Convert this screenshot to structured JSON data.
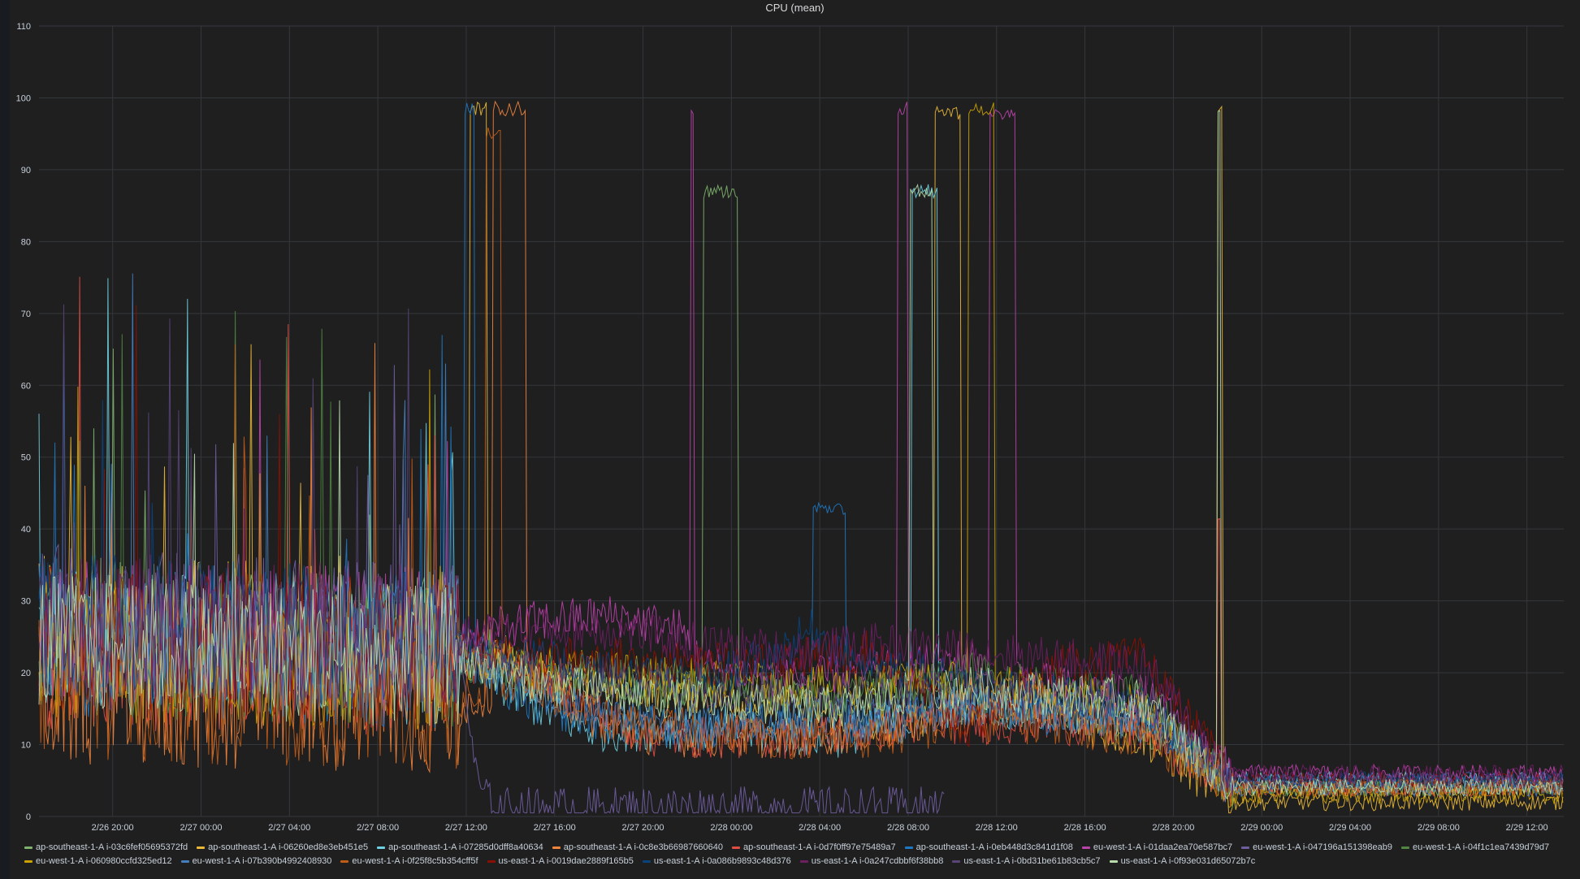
{
  "panel": {
    "title": "CPU (mean)"
  },
  "chart_data": {
    "type": "line",
    "title": "CPU (mean)",
    "xlabel": "",
    "ylabel": "",
    "ylim": [
      0,
      110
    ],
    "yticks": [
      0,
      10,
      20,
      30,
      40,
      50,
      60,
      70,
      80,
      90,
      100,
      110
    ],
    "x_range": [
      "2/26 16:40",
      "2/29 13:40"
    ],
    "xticks": [
      "2/26 20:00",
      "2/27 00:00",
      "2/27 04:00",
      "2/27 08:00",
      "2/27 12:00",
      "2/27 16:00",
      "2/27 20:00",
      "2/28 00:00",
      "2/28 04:00",
      "2/28 08:00",
      "2/28 12:00",
      "2/28 16:00",
      "2/28 20:00",
      "2/29 00:00",
      "2/29 04:00",
      "2/29 08:00",
      "2/29 12:00"
    ],
    "grid": true,
    "legend_position": "bottom",
    "series": [
      {
        "name": "ap-southeast-1-A i-03c6fef05695372fd",
        "color": "#7eb26d",
        "base": [
          [
            0,
            26
          ],
          [
            14,
            24
          ],
          [
            20.5,
            24
          ],
          [
            22,
            20
          ],
          [
            26,
            18
          ],
          [
            30,
            17
          ],
          [
            36,
            16
          ],
          [
            39,
            17
          ],
          [
            42,
            16
          ],
          [
            45,
            15
          ],
          [
            48,
            14
          ],
          [
            50,
            13
          ],
          [
            54,
            4
          ],
          [
            66,
            4
          ],
          [
            69,
            4
          ]
        ],
        "spikes": [
          [
            30,
            88,
            1.6
          ]
        ]
      },
      {
        "name": "ap-southeast-1-A i-06260ed8e3eb451e5",
        "color": "#eab839",
        "base": [
          [
            0,
            27
          ],
          [
            20,
            24
          ],
          [
            22,
            20
          ],
          [
            24,
            18
          ],
          [
            28,
            18
          ],
          [
            30,
            17
          ],
          [
            34,
            15
          ],
          [
            38,
            13
          ],
          [
            40,
            14
          ],
          [
            42,
            16
          ],
          [
            45,
            16
          ],
          [
            48,
            12
          ],
          [
            50,
            11
          ],
          [
            54,
            2
          ],
          [
            66,
            2
          ],
          [
            69,
            2
          ]
        ],
        "spikes": [
          [
            19.5,
            99.5,
            0.8
          ],
          [
            40.5,
            99,
            1.2
          ],
          [
            53.3,
            99,
            0.25
          ]
        ]
      },
      {
        "name": "ap-southeast-1-A i-07285d0dff8a40634",
        "color": "#6ed0e0",
        "base": [
          [
            0,
            25
          ],
          [
            19,
            22
          ],
          [
            22,
            16
          ],
          [
            25,
            12
          ],
          [
            30,
            12
          ],
          [
            36,
            11
          ],
          [
            39,
            13
          ],
          [
            42,
            16
          ],
          [
            46,
            14
          ],
          [
            50,
            14
          ],
          [
            54,
            5
          ],
          [
            66,
            5
          ],
          [
            69,
            5
          ]
        ],
        "spikes": [
          [
            39.5,
            88,
            1.2
          ]
        ]
      },
      {
        "name": "ap-southeast-1-A i-0c8e3b66987660640",
        "color": "#ef843c",
        "base": [
          [
            0,
            17
          ],
          [
            19,
            15
          ],
          [
            22,
            20
          ],
          [
            24,
            16
          ],
          [
            26,
            12
          ],
          [
            30,
            11
          ],
          [
            34,
            11
          ],
          [
            38,
            12
          ],
          [
            40,
            13
          ],
          [
            42,
            17
          ],
          [
            45,
            17
          ],
          [
            48,
            15
          ],
          [
            50,
            14
          ],
          [
            54,
            4
          ],
          [
            66,
            4
          ],
          [
            69,
            4
          ]
        ],
        "spikes": [
          [
            20.5,
            99.5,
            1.5
          ]
        ]
      },
      {
        "name": "ap-southeast-1-A i-0d7f0ff97e75489a7",
        "color": "#e24d42",
        "base": [
          [
            0,
            22
          ],
          [
            19,
            21
          ],
          [
            22,
            22
          ],
          [
            24,
            17
          ],
          [
            26,
            13
          ],
          [
            28,
            11
          ],
          [
            34,
            11
          ],
          [
            38,
            12
          ],
          [
            40,
            13
          ],
          [
            42,
            13
          ],
          [
            46,
            13
          ],
          [
            50,
            12
          ],
          [
            54,
            4
          ],
          [
            66,
            4
          ],
          [
            69,
            4
          ]
        ],
        "spikes": [
          [
            53.3,
            43,
            0.2
          ]
        ]
      },
      {
        "name": "ap-southeast-1-A i-0eb448d3c841d1f08",
        "color": "#1f78c1",
        "base": [
          [
            0,
            24
          ],
          [
            19,
            22
          ],
          [
            22,
            16
          ],
          [
            26,
            13
          ],
          [
            30,
            12
          ],
          [
            34,
            14
          ],
          [
            36,
            13
          ],
          [
            39,
            13
          ],
          [
            42,
            16
          ],
          [
            46,
            14
          ],
          [
            50,
            14
          ],
          [
            54,
            5
          ],
          [
            66,
            5
          ],
          [
            69,
            5
          ]
        ],
        "spikes": [
          [
            19.2,
            99.5,
            0.5
          ],
          [
            35,
            44,
            1.5
          ]
        ]
      },
      {
        "name": "eu-west-1-A i-01daa2ea70e587bc7",
        "color": "#ba43a9",
        "base": [
          [
            0,
            26
          ],
          [
            19,
            25
          ],
          [
            22,
            27
          ],
          [
            26,
            28
          ],
          [
            29,
            26
          ],
          [
            30,
            21
          ],
          [
            34,
            19
          ],
          [
            38,
            20
          ],
          [
            42,
            22
          ],
          [
            46,
            18
          ],
          [
            50,
            17
          ],
          [
            54,
            6
          ],
          [
            66,
            6
          ],
          [
            69,
            6
          ]
        ],
        "spikes": [
          [
            38.8,
            99.5,
            0.5
          ],
          [
            43,
            99,
            1.2
          ],
          [
            29.5,
            99,
            0.15
          ]
        ]
      },
      {
        "name": "eu-west-1-A i-047196a151398eab9",
        "color": "#705da0",
        "base": [
          [
            0,
            28
          ],
          [
            19,
            25
          ],
          [
            19.8,
            5
          ],
          [
            20.5,
            1.2
          ],
          [
            40.5,
            1.2
          ],
          [
            41,
            1.0
          ],
          [
            41.1,
            null
          ],
          [
            66,
            null
          ],
          [
            69,
            null
          ]
        ],
        "spikes": []
      },
      {
        "name": "eu-west-1-A i-04f1c1ea7439d79d7",
        "color": "#508642",
        "base": [
          [
            0,
            24
          ],
          [
            19,
            22
          ],
          [
            22,
            20
          ],
          [
            26,
            19
          ],
          [
            30,
            18
          ],
          [
            36,
            17
          ],
          [
            39,
            18
          ],
          [
            42,
            20
          ],
          [
            46,
            18
          ],
          [
            50,
            17
          ],
          [
            54,
            4
          ],
          [
            66,
            4
          ],
          [
            69,
            4
          ]
        ],
        "spikes": []
      },
      {
        "name": "eu-west-1-A i-060980ccfd325ed12",
        "color": "#cca300",
        "base": [
          [
            0,
            23
          ],
          [
            19,
            22
          ],
          [
            22,
            21
          ],
          [
            26,
            20
          ],
          [
            30,
            19
          ],
          [
            36,
            18
          ],
          [
            39,
            19
          ],
          [
            42,
            19
          ],
          [
            46,
            17
          ],
          [
            50,
            16
          ],
          [
            54,
            3
          ],
          [
            66,
            3
          ],
          [
            69,
            3
          ]
        ],
        "spikes": [
          [
            42,
            99.5,
            1.2
          ]
        ]
      },
      {
        "name": "eu-west-1-A i-07b390b4992408930",
        "color": "#447ebc",
        "base": [
          [
            0,
            26
          ],
          [
            19,
            24
          ],
          [
            22,
            18
          ],
          [
            26,
            14
          ],
          [
            30,
            13
          ],
          [
            36,
            14
          ],
          [
            39,
            14
          ],
          [
            42,
            15
          ],
          [
            46,
            15
          ],
          [
            50,
            13
          ],
          [
            54,
            4
          ],
          [
            66,
            4
          ],
          [
            69,
            4
          ]
        ],
        "spikes": []
      },
      {
        "name": "eu-west-1-A i-0f25f8c5b354cff5f",
        "color": "#c15c17",
        "base": [
          [
            0,
            18
          ],
          [
            19,
            16
          ],
          [
            22,
            19
          ],
          [
            26,
            13
          ],
          [
            30,
            12
          ],
          [
            34,
            11
          ],
          [
            38,
            11
          ],
          [
            40,
            12
          ],
          [
            42,
            13
          ],
          [
            46,
            13
          ],
          [
            50,
            11
          ],
          [
            54,
            4
          ],
          [
            66,
            4
          ],
          [
            69,
            4
          ]
        ],
        "spikes": [
          [
            20.2,
            96,
            0.7
          ]
        ]
      },
      {
        "name": "us-east-1-A i-0019dae2889f165b5",
        "color": "#890f02",
        "base": [
          [
            0,
            25
          ],
          [
            19,
            23
          ],
          [
            22,
            22
          ],
          [
            26,
            22
          ],
          [
            30,
            21
          ],
          [
            34,
            22
          ],
          [
            38,
            23
          ],
          [
            42,
            12
          ],
          [
            46,
            21
          ],
          [
            50,
            22
          ],
          [
            54,
            5
          ],
          [
            66,
            5
          ],
          [
            69,
            5
          ]
        ],
        "spikes": []
      },
      {
        "name": "us-east-1-A i-0a086b9893c48d376",
        "color": "#0a437c",
        "base": [
          [
            0,
            27
          ],
          [
            19,
            25
          ],
          [
            22,
            22
          ],
          [
            26,
            20
          ],
          [
            30,
            19
          ],
          [
            33,
            22
          ],
          [
            35,
            26
          ],
          [
            38,
            20
          ],
          [
            40,
            21
          ],
          [
            42,
            18
          ],
          [
            46,
            17
          ],
          [
            50,
            15
          ],
          [
            54,
            5
          ],
          [
            66,
            5
          ],
          [
            69,
            5
          ]
        ],
        "spikes": []
      },
      {
        "name": "us-east-1-A i-0a247cdbbf6f38bb8",
        "color": "#6d1f62",
        "base": [
          [
            0,
            27
          ],
          [
            19,
            25
          ],
          [
            22,
            26
          ],
          [
            26,
            26
          ],
          [
            30,
            24
          ],
          [
            34,
            23
          ],
          [
            38,
            24
          ],
          [
            42,
            23
          ],
          [
            46,
            22
          ],
          [
            50,
            21
          ],
          [
            54,
            6
          ],
          [
            66,
            6
          ],
          [
            69,
            6
          ]
        ],
        "spikes": []
      },
      {
        "name": "us-east-1-A i-0bd31be61b83cb5c7",
        "color": "#584477",
        "base": [
          [
            0,
            25
          ],
          [
            19,
            23
          ],
          [
            22,
            20
          ],
          [
            26,
            19
          ],
          [
            30,
            18
          ],
          [
            36,
            17
          ],
          [
            39,
            17
          ],
          [
            42,
            18
          ],
          [
            46,
            17
          ],
          [
            50,
            16
          ],
          [
            54,
            5
          ],
          [
            66,
            5
          ],
          [
            69,
            5
          ]
        ],
        "spikes": []
      },
      {
        "name": "us-east-1-A i-0f93e031d65072b7c",
        "color": "#b7dbab",
        "base": [
          [
            0,
            24
          ],
          [
            19,
            22
          ],
          [
            22,
            19
          ],
          [
            26,
            17
          ],
          [
            30,
            16
          ],
          [
            36,
            15
          ],
          [
            39,
            17
          ],
          [
            42,
            18
          ],
          [
            46,
            17
          ],
          [
            50,
            16
          ],
          [
            54,
            4
          ],
          [
            66,
            4
          ],
          [
            69,
            4
          ]
        ],
        "spikes": [
          [
            39.4,
            88,
            1.0
          ],
          [
            53.3,
            99.5,
            0.2
          ]
        ]
      }
    ]
  }
}
